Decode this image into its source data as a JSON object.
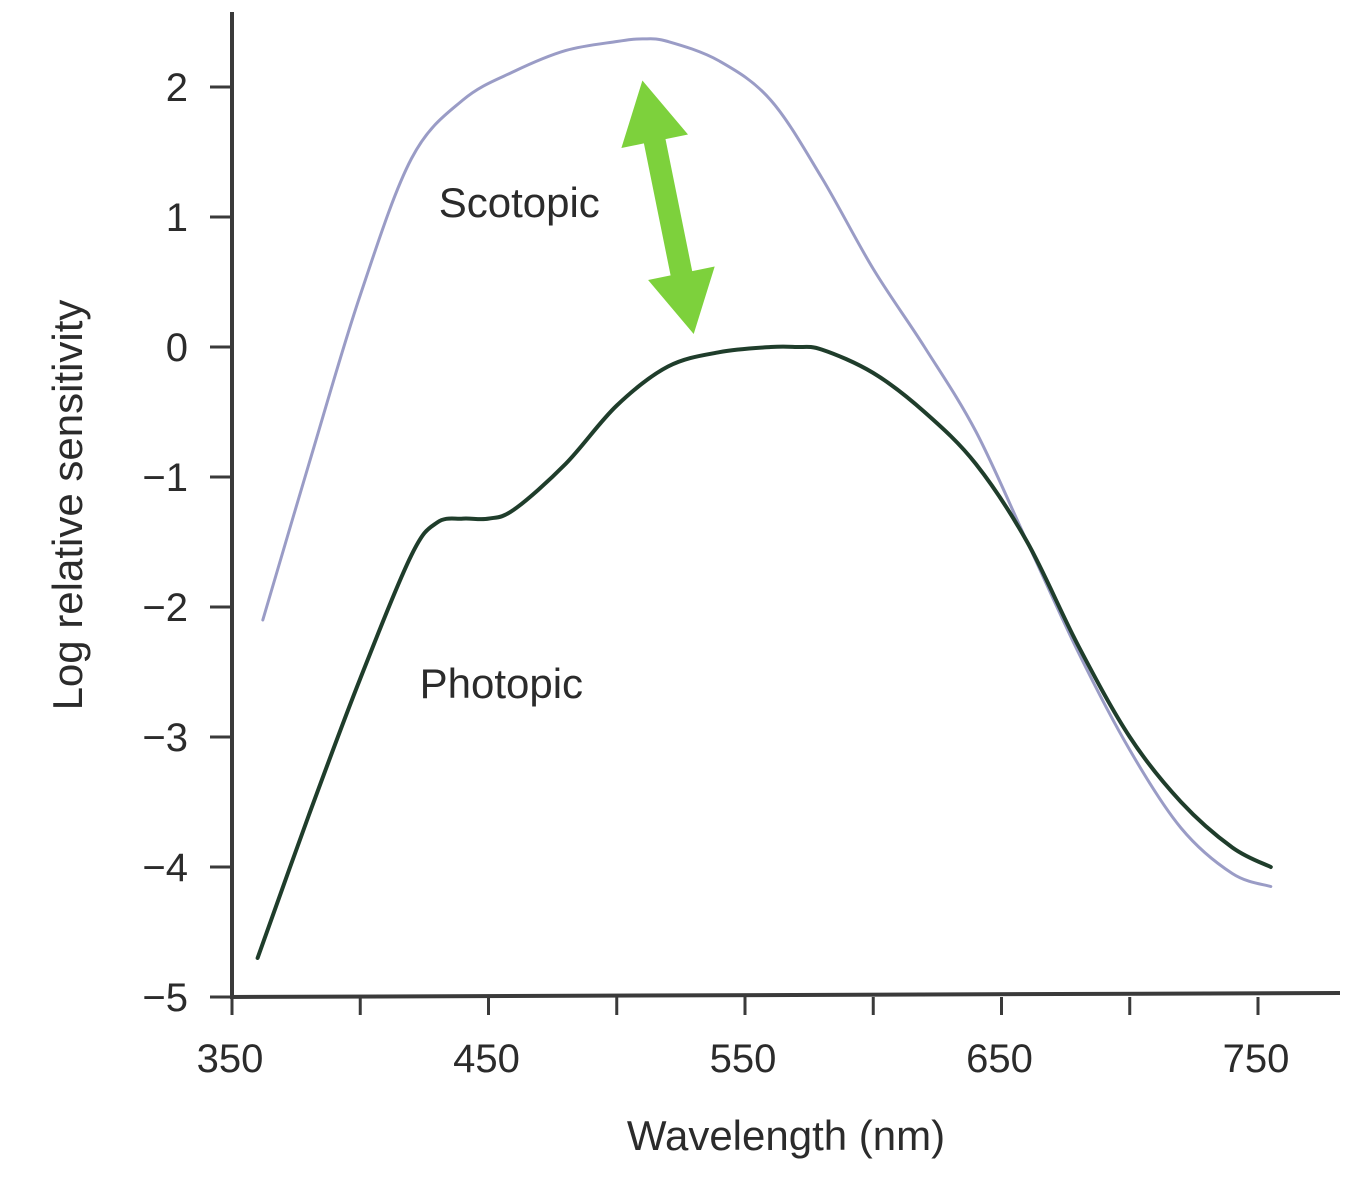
{
  "colors": {
    "background": "#ffffff",
    "axis": "#3a3a3a",
    "text": "#2b2b2b",
    "scotopic": "#9a9cc6",
    "photopic": "#1f3d2b",
    "arrow": "#7dd13c"
  },
  "chart_data": {
    "type": "line",
    "title": "",
    "xlabel": "Wavelength (nm)",
    "ylabel": "Log relative sensitivity",
    "xlim": [
      350,
      780
    ],
    "ylim": [
      -5,
      2.6
    ],
    "x_ticks": [
      350,
      400,
      450,
      500,
      550,
      600,
      650,
      700,
      750
    ],
    "x_tick_labels": [
      "350",
      "",
      "450",
      "",
      "550",
      "",
      "650",
      "",
      "750"
    ],
    "y_ticks": [
      2,
      1,
      0,
      -1,
      -2,
      -3,
      -4,
      -5
    ],
    "y_tick_labels": [
      "2",
      "1",
      "0",
      "−1",
      "−2",
      "−3",
      "−4",
      "−5"
    ],
    "grid": false,
    "legend": "none",
    "series": [
      {
        "name": "Scotopic",
        "color": "#9a9cc6",
        "x": [
          362,
          380,
          400,
          420,
          440,
          460,
          480,
          500,
          510,
          520,
          540,
          560,
          580,
          600,
          620,
          640,
          660,
          680,
          700,
          720,
          740,
          755
        ],
        "y": [
          -2.1,
          -0.9,
          0.4,
          1.45,
          1.9,
          2.12,
          2.28,
          2.35,
          2.37,
          2.35,
          2.2,
          1.9,
          1.3,
          0.6,
          0.0,
          -0.65,
          -1.5,
          -2.35,
          -3.1,
          -3.7,
          -4.05,
          -4.15
        ]
      },
      {
        "name": "Photopic",
        "color": "#1f3d2b",
        "x": [
          360,
          380,
          400,
          420,
          430,
          440,
          450,
          460,
          480,
          500,
          520,
          540,
          560,
          570,
          580,
          600,
          620,
          640,
          660,
          680,
          700,
          720,
          740,
          755
        ],
        "y": [
          -4.7,
          -3.6,
          -2.55,
          -1.6,
          -1.35,
          -1.32,
          -1.32,
          -1.25,
          -0.9,
          -0.45,
          -0.15,
          -0.04,
          0.0,
          0.0,
          -0.02,
          -0.2,
          -0.5,
          -0.9,
          -1.5,
          -2.3,
          -3.0,
          -3.5,
          -3.85,
          -4.0
        ]
      }
    ],
    "annotations": [
      {
        "type": "text",
        "text": "Scotopic",
        "x": 462,
        "y": 1.0
      },
      {
        "type": "text",
        "text": "Photopic",
        "x": 455,
        "y": -2.7
      },
      {
        "type": "double-arrow",
        "from": [
          510,
          2.05
        ],
        "to": [
          530,
          0.1
        ]
      }
    ]
  }
}
